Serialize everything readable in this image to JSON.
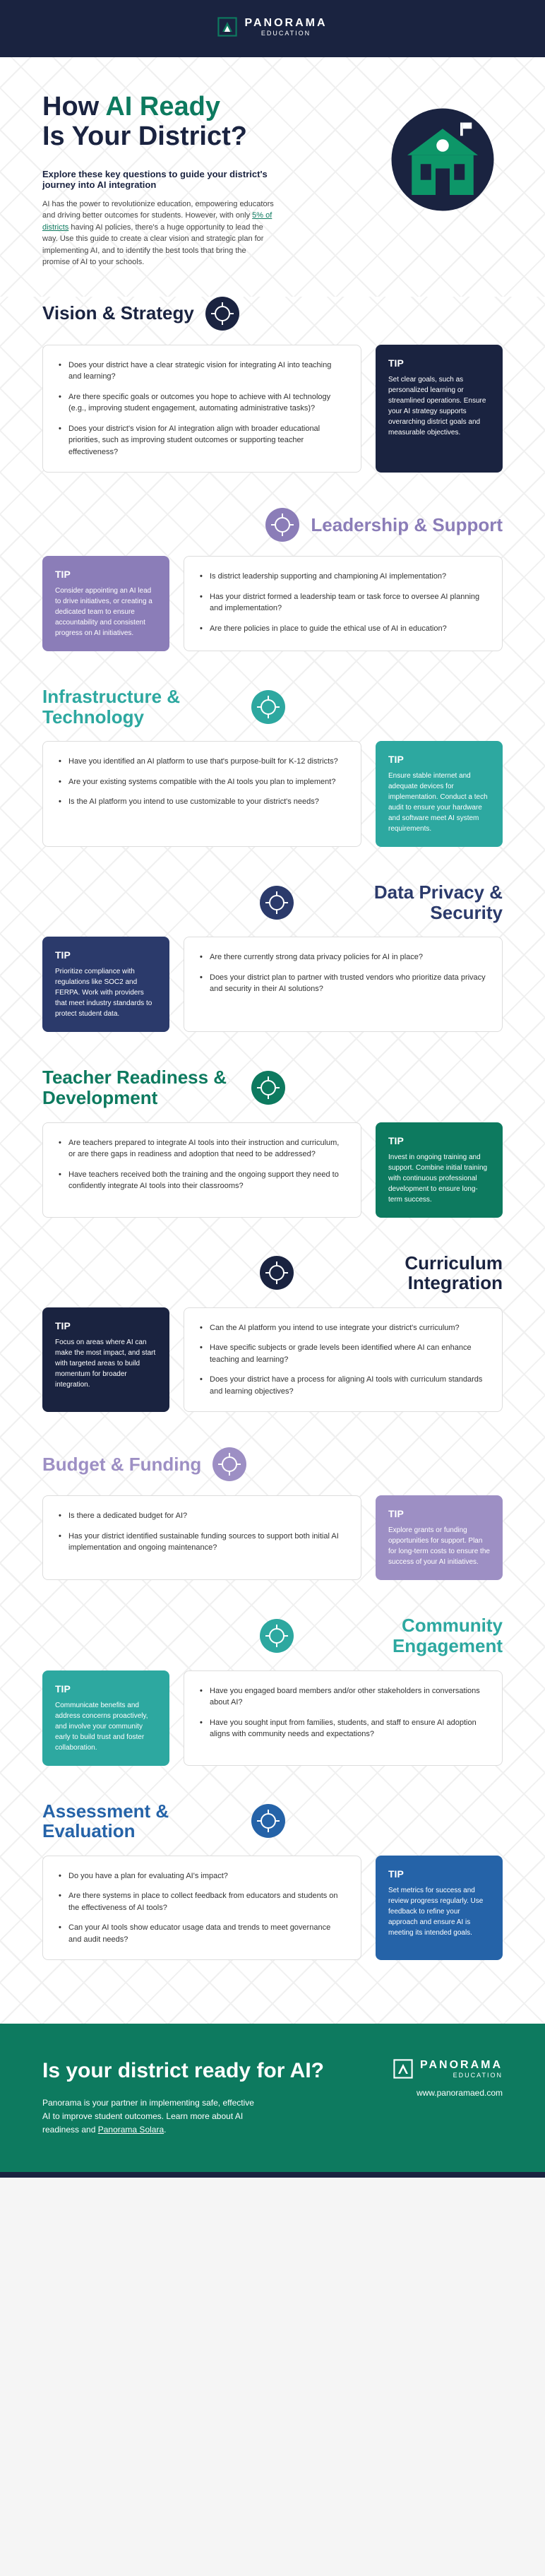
{
  "brand": {
    "name": "PANORAMA",
    "sub": "EDUCATION"
  },
  "hero": {
    "title_pre": "How ",
    "title_accent": "AI Ready",
    "title_post": "Is Your District?",
    "subtitle": "Explore these key questions to guide your district's journey into AI integration",
    "body_pre": "AI has the power to revolutionize education, empowering educators and driving better outcomes for students. However, with only ",
    "body_link": "5% of districts",
    "body_post": " having AI policies, there's a huge opportunity to lead the way. Use this guide to create a clear vision and strategic plan for implementing AI, and to identify the best tools that bring the promise of AI to your schools."
  },
  "sections": [
    {
      "title": "Vision & Strategy",
      "align": "left",
      "color_class": "darkblue",
      "icon_bg": "#1a2340",
      "tip_side": "right",
      "questions": [
        "Does your district have a clear strategic vision for integrating AI into teaching and learning?",
        "Are there specific goals or outcomes you hope to achieve with AI technology (e.g., improving student engagement, automating administrative tasks)?",
        "Does your district's vision for AI integration align with broader educational priorities, such as improving student outcomes or supporting teacher effectiveness?"
      ],
      "tip": "Set clear goals, such as personalized learning or streamlined operations. Ensure your AI strategy supports overarching district goals and measurable objectives."
    },
    {
      "title": "Leadership & Support",
      "align": "right",
      "color_class": "purple",
      "icon_bg": "#8b7db8",
      "tip_side": "left",
      "questions": [
        "Is district leadership supporting and championing AI implementation?",
        "Has your district formed a leadership team or task force to oversee AI planning and implementation?",
        "Are there policies in place to guide the ethical use of AI in education?"
      ],
      "tip": "Consider appointing an AI lead to drive initiatives, or creating a dedicated team to ensure accountability and consistent progress on AI initiatives."
    },
    {
      "title": "Infrastructure & Technology",
      "align": "left",
      "color_class": "teal",
      "icon_bg": "#2da8a0",
      "tip_side": "right",
      "questions": [
        "Have you identified an AI platform to use that's purpose-built for K-12 districts?",
        "Are your existing systems compatible with the AI tools you plan to implement?",
        "Is the AI platform you intend to use customizable to your district's needs?"
      ],
      "tip": "Ensure stable internet and adequate devices for implementation. Conduct a tech audit to ensure your hardware and software meet AI system requirements."
    },
    {
      "title": "Data Privacy & Security",
      "align": "right",
      "color_class": "navy",
      "icon_bg": "#2b3a6b",
      "tip_side": "left",
      "questions": [
        "Are there currently strong data privacy policies for AI in place?",
        "Does your district plan to partner with trusted vendors who prioritize data privacy and security in their AI solutions?"
      ],
      "tip": "Prioritize compliance with regulations like SOC2 and FERPA. Work with providers that meet industry standards to protect student data."
    },
    {
      "title": "Teacher Readiness & Development",
      "align": "left",
      "color_class": "green",
      "icon_bg": "#0d7a5f",
      "tip_side": "right",
      "questions": [
        "Are teachers prepared to integrate AI tools into their instruction and curriculum, or are there gaps in readiness and adoption that need to be addressed?",
        "Have teachers received both the training and the ongoing support they need to confidently integrate AI tools into their classrooms?"
      ],
      "tip": "Invest in ongoing training and support. Combine initial training with continuous professional development to ensure long-term success."
    },
    {
      "title": "Curriculum Integration",
      "align": "right",
      "color_class": "darkblue",
      "icon_bg": "#1a2340",
      "tip_side": "left",
      "questions": [
        "Can the AI platform you intend to use integrate your district's curriculum?",
        "Have specific subjects or grade levels been identified where AI can enhance teaching and learning?",
        "Does your district have a process for aligning AI tools with curriculum standards and learning objectives?"
      ],
      "tip": "Focus on areas where AI can make the most impact, and start with targeted areas to build momentum for broader integration."
    },
    {
      "title": "Budget & Funding",
      "align": "left",
      "color_class": "lightpurple",
      "icon_bg": "#9d8fc4",
      "tip_side": "right",
      "questions": [
        "Is there a dedicated budget for AI?",
        "Has your district identified sustainable funding sources to support both initial AI implementation and ongoing maintenance?"
      ],
      "tip": "Explore grants or funding opportunities for support. Plan for long-term costs to ensure the success of your AI initiatives."
    },
    {
      "title": "Community Engagement",
      "align": "right",
      "color_class": "teal",
      "icon_bg": "#2da8a0",
      "tip_side": "left",
      "questions": [
        "Have you engaged board members and/or other stakeholders in conversations about AI?",
        "Have you sought input from families, students, and staff to ensure AI adoption aligns with community needs and expectations?"
      ],
      "tip": "Communicate benefits and address concerns proactively, and involve your community early to build trust and foster collaboration."
    },
    {
      "title": "Assessment & Evaluation",
      "align": "left",
      "color_class": "blue",
      "icon_bg": "#2563a8",
      "tip_side": "right",
      "questions": [
        "Do you have a plan for evaluating AI's impact?",
        "Are there systems in place to collect feedback from educators and students on the effectiveness of AI tools?",
        "Can your AI tools show educator usage data and trends to meet governance and audit needs?"
      ],
      "tip": "Set metrics for success and review progress regularly. Use feedback to refine your approach and ensure AI is meeting its intended goals."
    }
  ],
  "footer": {
    "title": "Is your district ready for AI?",
    "body_pre": "Panorama is your partner in implementing safe, effective AI to improve student outcomes. Learn more about AI readiness and ",
    "body_link": "Panorama Solara",
    "body_post": ".",
    "url": "www.panoramaed.com"
  },
  "tip_label": "TIP"
}
